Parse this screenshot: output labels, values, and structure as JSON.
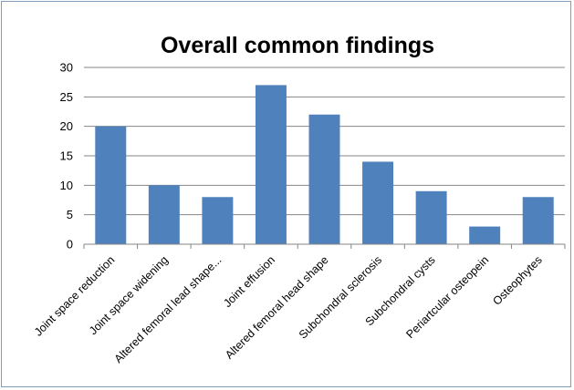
{
  "chart_data": {
    "type": "bar",
    "title": "Overall  common findings",
    "categories": [
      "Joint space  reduction",
      "Joint space  widening",
      "Altered femoral lead shape...",
      "Joint effusion",
      "Altered femoral head shape",
      "Subchondral sclerosis",
      "Subchondral cysts",
      "Periartcular osteopein",
      "Osteophytes"
    ],
    "values": [
      20,
      10,
      8,
      27,
      22,
      14,
      9,
      3,
      8
    ],
    "ylim": [
      0,
      30
    ],
    "yticks": [
      "0",
      "5",
      "10",
      "15",
      "20",
      "25",
      "30"
    ],
    "xlabel": "",
    "ylabel": "",
    "grid": true,
    "legend": "none",
    "bar_color": "#4f81bd",
    "grid_color": "#868686"
  }
}
